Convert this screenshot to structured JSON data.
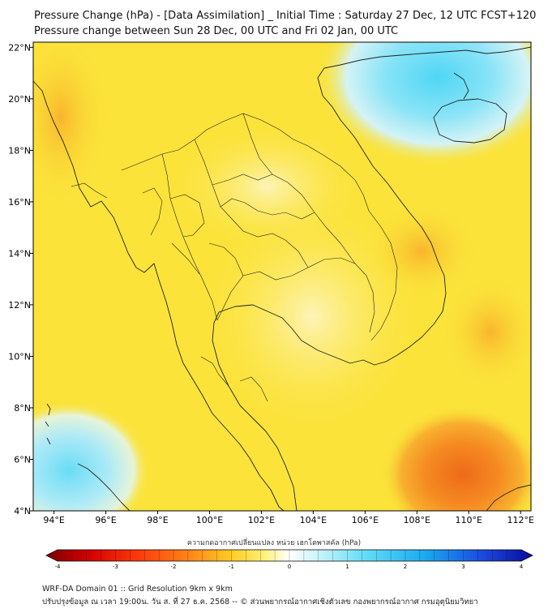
{
  "header": {
    "title_line1": "Pressure Change (hPa) - [Data Assimilation] _ Initial Time : Saturday 27 Dec, 12 UTC FCST+120",
    "title_line2": "Pressure change between Sun 28 Dec, 00 UTC and Fri 02 Jan, 00 UTC"
  },
  "map": {
    "lat_ticks": [
      "22°N",
      "20°N",
      "18°N",
      "16°N",
      "14°N",
      "12°N",
      "10°N",
      "8°N",
      "6°N",
      "4°N"
    ],
    "lon_ticks": [
      "94°E",
      "96°E",
      "98°E",
      "100°E",
      "102°E",
      "104°E",
      "106°E",
      "108°E",
      "110°E",
      "112°E"
    ],
    "lat_range": [
      4,
      22.2
    ],
    "lon_range": [
      93.2,
      112.4
    ],
    "colors": {
      "background_yellow": "#fbe33a",
      "light_yellow": "#fcef95",
      "orange": "#f8a32a",
      "deep_orange": "#f0751c",
      "cyan": "#56d8f4",
      "light_cyan": "#bff0fb"
    }
  },
  "colorbar": {
    "label": "ความกดอากาศเปลี่ยนแปลง หน่วย เฮกโตพาสคัล (hPa)",
    "ticks": [
      "-4",
      "-3",
      "-2",
      "-1",
      "0",
      "1",
      "2",
      "3",
      "4"
    ],
    "min": -4,
    "max": 4,
    "colors": [
      "#7f0000",
      "#d40000",
      "#ff3a0a",
      "#ff8a1a",
      "#ffcc22",
      "#fff27a",
      "#ffffff",
      "#c9f4fb",
      "#5fdcf5",
      "#1aa9f0",
      "#1b4fe0",
      "#0a0aa0"
    ]
  },
  "footer": {
    "line1": "WRF-DA Domain 01 :: Grid Resolution 9km x 9km",
    "line2": "ปรับปรุงข้อมูล ณ เวลา 19:00น. วัน ส. ที่ 27 ธ.ค. 2568 -- © ส่วนพยากรณ์อากาศเชิงตัวเลข กองพยากรณ์อากาศ กรมอุตุนิยมวิทยา"
  }
}
